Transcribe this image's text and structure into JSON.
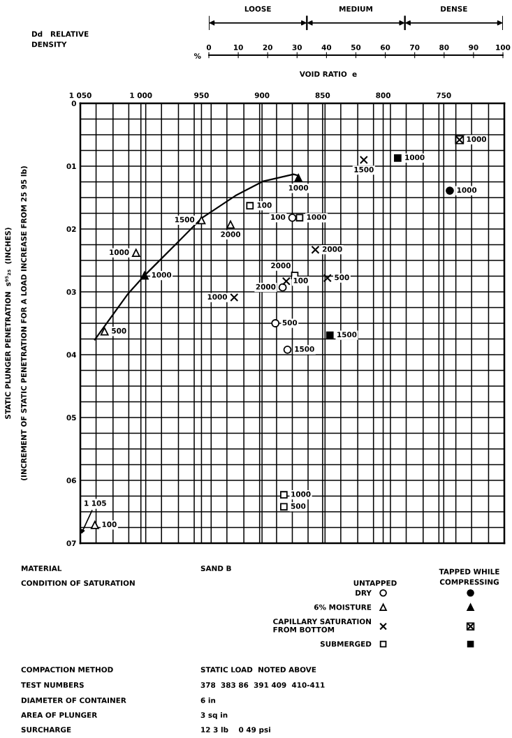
{
  "chart_data": {
    "type": "scatter",
    "xlabel": "VOID RATIO  e",
    "ylabel": "STATIC PLUNGER PENETRATION  s⁹⁵₂₅  (INCHES)\n(INCREMENT OF STATIC PENETRATION FOR A LOAD INCREASE FROM 25 95 lb)",
    "x2label": "Dd   RELATIVE\nDENSITY",
    "xlim": [
      1050,
      700
    ],
    "xticks": [
      {
        "value": 1050,
        "label": "1 050"
      },
      {
        "value": 1037,
        "label": null
      },
      {
        "value": 1023,
        "label": null
      },
      {
        "value": 1010,
        "label": null
      },
      {
        "value": 1000,
        "label": "1 000"
      },
      {
        "value": 996,
        "label": null
      },
      {
        "value": 983,
        "label": null
      },
      {
        "value": 969,
        "label": null
      },
      {
        "value": 956,
        "label": null
      },
      950,
      {
        "value": 942,
        "label": null
      },
      {
        "value": 929,
        "label": null
      },
      {
        "value": 915,
        "label": null
      },
      {
        "value": 902,
        "label": null
      },
      900,
      {
        "value": 888,
        "label": null
      },
      {
        "value": 875,
        "label": null
      },
      {
        "value": 862,
        "label": null
      },
      850,
      {
        "value": 848,
        "label": null
      },
      {
        "value": 835,
        "label": null
      },
      {
        "value": 821,
        "label": null
      },
      {
        "value": 808,
        "label": null
      },
      800,
      {
        "value": 794,
        "label": null
      },
      {
        "value": 781,
        "label": null
      },
      {
        "value": 767,
        "label": null
      },
      {
        "value": 754,
        "label": null
      },
      750,
      {
        "value": 740,
        "label": null
      },
      {
        "value": 727,
        "label": null
      },
      {
        "value": 713,
        "label": null
      }
    ],
    "ylim": [
      7,
      0
    ],
    "yticks": [
      0,
      {
        "value": 0.25,
        "label": null
      },
      {
        "value": 0.5,
        "label": null
      },
      {
        "value": 0.75,
        "label": null
      },
      {
        "value": 1,
        "label": "01"
      },
      {
        "value": 1.25,
        "label": null
      },
      {
        "value": 1.5,
        "label": null
      },
      {
        "value": 1.75,
        "label": null
      },
      {
        "value": 2,
        "label": "02"
      },
      {
        "value": 2.25,
        "label": null
      },
      {
        "value": 2.5,
        "label": null
      },
      {
        "value": 2.75,
        "label": null
      },
      {
        "value": 3,
        "label": "03"
      },
      {
        "value": 3.25,
        "label": null
      },
      {
        "value": 3.5,
        "label": null
      },
      {
        "value": 3.75,
        "label": null
      },
      {
        "value": 4,
        "label": "04"
      },
      {
        "value": 4.25,
        "label": null
      },
      {
        "value": 4.5,
        "label": null
      },
      {
        "value": 4.75,
        "label": null
      },
      {
        "value": 5,
        "label": "05"
      },
      {
        "value": 5.25,
        "label": null
      },
      {
        "value": 5.5,
        "label": null
      },
      {
        "value": 5.75,
        "label": null
      },
      {
        "value": 6,
        "label": "06"
      },
      {
        "value": 6.25,
        "label": null
      },
      {
        "value": 6.5,
        "label": null
      },
      {
        "value": 6.75,
        "label": null
      },
      {
        "value": 7,
        "label": "07"
      }
    ],
    "x2lim": [
      0,
      100
    ],
    "x2ticks": [
      0,
      10,
      20,
      30,
      40,
      50,
      60,
      70,
      80,
      90,
      100
    ],
    "grid": true,
    "legend": "bottom",
    "series": [
      {
        "name": "DRY",
        "marker": "circle",
        "color": "#ffffff",
        "x": [
          875,
          883,
          889,
          879
        ],
        "values": [
          1.82,
          2.93,
          3.5,
          3.92
        ]
      },
      {
        "marker": "circle",
        "color": "#000000",
        "x": [
          745
        ],
        "values": [
          1.39
        ]
      },
      {
        "name": "6% MOISTURE",
        "marker": "triangle",
        "color": "#ffffff",
        "x": [
          1038,
          1030,
          1004,
          950,
          926
        ],
        "values": [
          6.71,
          3.63,
          2.38,
          1.86,
          1.93
        ]
      },
      {
        "marker": "triangle",
        "color": "#000000",
        "x": [
          997,
          870
        ],
        "values": [
          2.74,
          1.19
        ]
      },
      {
        "name": "CAPILLARY SATURATION\nFROM BOTTOM",
        "marker": "cross",
        "color": "#000000",
        "x": [
          880,
          846,
          923,
          816,
          856
        ],
        "values": [
          2.83,
          2.78,
          3.09,
          0.9,
          2.33
        ]
      },
      {
        "color": "#000000",
        "x": [
          737
        ],
        "values": [
          0.58
        ]
      },
      {
        "name": "SUBMERGED",
        "marker": "square",
        "color": "#ffffff",
        "x": [
          910,
          882,
          882,
          869,
          873
        ],
        "values": [
          1.63,
          6.42,
          6.23,
          1.82,
          2.74
        ]
      },
      {
        "marker": "square",
        "color": "#000000",
        "x": [
          788,
          844
        ],
        "values": [
          0.87,
          3.69
        ]
      },
      {
        "type": "line",
        "marker": "none",
        "color": "#000000",
        "x": [
          1038,
          1011,
          997,
          970,
          950,
          922,
          899,
          874,
          870
        ],
        "values": [
          3.76,
          3.04,
          2.74,
          2.22,
          1.83,
          1.47,
          1.24,
          1.13,
          1.15
        ]
      }
    ],
    "annotations": [
      "%",
      "LOOSE",
      "MEDIUM",
      "DENSE",
      "1 105",
      "MATERIAL",
      "SAND B",
      "TAPPED WHILE\nCOMPRESSING",
      "CONDITION OF SATURATION",
      "UNTAPPED",
      "COMPACTION METHOD",
      "STATIC LOAD  NOTED ABOVE",
      "TEST NUMBERS",
      "378  383 86  391 409  410-411",
      "DIAMETER OF CONTAINER",
      "6 in",
      "AREA OF PLUNGER",
      "3 sq in",
      "SURCHARGE",
      "12 3 lb    0 49 psi",
      {
        "text": "100",
        "x": 875,
        "y": 1.82
      },
      {
        "text": "2000",
        "x": 883,
        "y": 2.93
      },
      {
        "text": "500",
        "x": 889,
        "y": 3.5
      },
      {
        "text": "1500",
        "x": 879,
        "y": 3.92
      },
      {
        "text": "1000",
        "x": 745,
        "y": 1.39
      },
      {
        "text": "100",
        "x": 1038,
        "y": 6.71
      },
      {
        "text": "500",
        "x": 1030,
        "y": 3.63
      },
      {
        "text": "1000",
        "x": 1004,
        "y": 2.38
      },
      {
        "text": "1500",
        "x": 950,
        "y": 1.86
      },
      {
        "text": "2000",
        "x": 926,
        "y": 1.93
      },
      {
        "text": "1000",
        "x": 997,
        "y": 2.74
      },
      {
        "text": "1000",
        "x": 870,
        "y": 1.19
      },
      {
        "text": "100",
        "x": 880,
        "y": 2.83
      },
      {
        "text": "500",
        "x": 846,
        "y": 2.78
      },
      {
        "text": "1000",
        "x": 923,
        "y": 3.09
      },
      {
        "text": "1500",
        "x": 816,
        "y": 0.9
      },
      {
        "text": "2000",
        "x": 856,
        "y": 2.33
      },
      {
        "text": "1000",
        "x": 737,
        "y": 0.58
      },
      {
        "text": "100",
        "x": 910,
        "y": 1.63
      },
      {
        "text": "500",
        "x": 882,
        "y": 6.42
      },
      {
        "text": "1000",
        "x": 882,
        "y": 6.23
      },
      {
        "text": "1000",
        "x": 869,
        "y": 1.82
      },
      {
        "text": "2000",
        "x": 873,
        "y": 2.74
      },
      {
        "text": "1000",
        "x": 788,
        "y": 0.87
      },
      {
        "text": "1500",
        "x": 844,
        "y": 3.69
      }
    ]
  }
}
